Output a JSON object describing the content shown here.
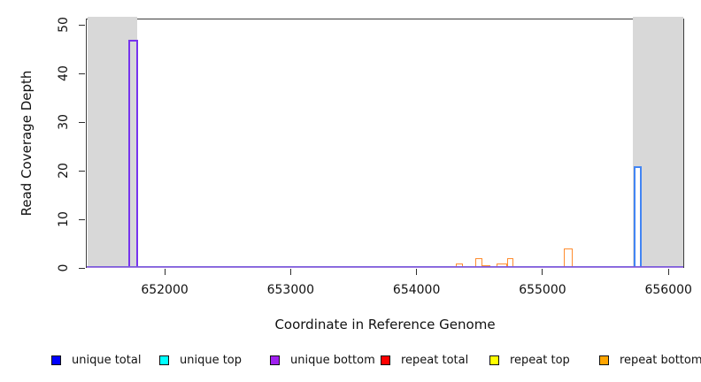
{
  "chart_data": {
    "type": "bar",
    "subtype": "read-coverage-step-plot",
    "title": "",
    "xlabel": "Coordinate in Reference Genome",
    "ylabel": "Read Coverage Depth",
    "xlim": [
      651374,
      656125
    ],
    "ylim": [
      0,
      51.3
    ],
    "grid": false,
    "legend_position": "bottom",
    "x_ticks": [
      {
        "value": 652000,
        "label": "652000"
      },
      {
        "value": 653000,
        "label": "653000"
      },
      {
        "value": 654000,
        "label": "654000"
      },
      {
        "value": 655000,
        "label": "655000"
      },
      {
        "value": 656000,
        "label": "656000"
      }
    ],
    "y_ticks": [
      {
        "value": 0,
        "label": "0"
      },
      {
        "value": 10,
        "label": "10"
      },
      {
        "value": 20,
        "label": "20"
      },
      {
        "value": 30,
        "label": "30"
      },
      {
        "value": 40,
        "label": "40"
      },
      {
        "value": 50,
        "label": "50"
      }
    ],
    "shaded_regions": [
      {
        "name": "left-repeat-region",
        "x1": 651374,
        "x2": 651780,
        "color": "#d8d8d8"
      },
      {
        "name": "right-repeat-region",
        "x1": 655720,
        "x2": 656125,
        "color": "#d8d8d8"
      }
    ],
    "baseline": {
      "depth": 0,
      "color_top": "#5f47d8",
      "color_bottom": "#bb90e4"
    },
    "series": [
      {
        "name": "repeat total",
        "render_color": "#ff2a00",
        "fill": "#ffffff",
        "stroke_px": 1.5,
        "segments": [
          {
            "x1": 655715,
            "x2": 655795,
            "depth": 0.3
          }
        ]
      },
      {
        "name": "repeat top",
        "render_color": "#e8e030",
        "fill": "#ffffff",
        "stroke_px": 1.5,
        "segments": [
          {
            "x1": 651758,
            "x2": 651790,
            "depth": 0.25
          }
        ]
      },
      {
        "name": "repeat bottom",
        "render_color": "#ff8c2e",
        "fill": "#ffffff",
        "stroke_px": 1.5,
        "segments": [
          {
            "x1": 654312,
            "x2": 654368,
            "depth": 1
          },
          {
            "x1": 654463,
            "x2": 654523,
            "depth": 2
          },
          {
            "x1": 654523,
            "x2": 654583,
            "depth": 0.6
          },
          {
            "x1": 654635,
            "x2": 654720,
            "depth": 1
          },
          {
            "x1": 654720,
            "x2": 654769,
            "depth": 2
          },
          {
            "x1": 655166,
            "x2": 655237,
            "depth": 4
          }
        ]
      },
      {
        "name": "unique bottom",
        "render_color": "#7733ee",
        "fill": "transparent",
        "stroke_px": 2,
        "segments": [
          {
            "x1": 651708,
            "x2": 651786,
            "depth": 47
          }
        ]
      },
      {
        "name": "unique total",
        "render_color": "#4285f4",
        "fill": "#ffffff",
        "stroke_px": 2,
        "segments": [
          {
            "x1": 655724,
            "x2": 655787,
            "depth": 21
          }
        ]
      }
    ],
    "legend": [
      {
        "label": "unique total",
        "color": "#0000ff"
      },
      {
        "label": "unique top",
        "color": "#00ffff"
      },
      {
        "label": "unique bottom",
        "color": "#a020f0"
      },
      {
        "label": "repeat total",
        "color": "#ff0000"
      },
      {
        "label": "repeat top",
        "color": "#ffff00"
      },
      {
        "label": "repeat bottom",
        "color": "#ffa500"
      }
    ]
  }
}
